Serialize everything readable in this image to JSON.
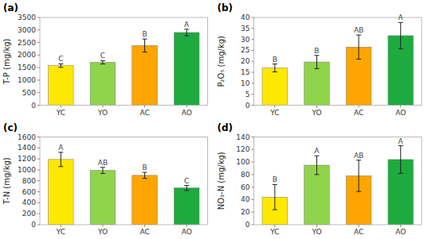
{
  "chart_data": [
    {
      "type": "bar",
      "title": "(a)",
      "ylabel": "T-P (mg/kg)",
      "categories": [
        "YC",
        "YO",
        "AC",
        "AO"
      ],
      "values": [
        1580,
        1710,
        2380,
        2900
      ],
      "errors": [
        70,
        65,
        260,
        130
      ],
      "annotations": [
        "C",
        "C",
        "B",
        "A"
      ],
      "colors": [
        "#FFE800",
        "#8FD44A",
        "#FFA500",
        "#1DAB3E"
      ],
      "ylim": [
        0,
        3500
      ],
      "yticks": [
        0,
        500,
        1000,
        1500,
        2000,
        2500,
        3000,
        3500
      ],
      "grid": false
    },
    {
      "type": "bar",
      "title": "(b)",
      "ylabel": "P₂O₅ (mg/kg)",
      "categories": [
        "YC",
        "YO",
        "AC",
        "AO"
      ],
      "values": [
        17.0,
        19.7,
        26.5,
        31.7
      ],
      "errors": [
        1.8,
        3.0,
        5.5,
        6.0
      ],
      "annotations": [
        "B",
        "B",
        "AB",
        "A"
      ],
      "colors": [
        "#FFE800",
        "#8FD44A",
        "#FFA500",
        "#1DAB3E"
      ],
      "ylim": [
        0,
        40
      ],
      "yticks": [
        0,
        5,
        10,
        15,
        20,
        25,
        30,
        35,
        40
      ],
      "grid": false
    },
    {
      "type": "bar",
      "title": "(c)",
      "ylabel": "T-N (mg/kg)",
      "categories": [
        "YC",
        "YO",
        "AC",
        "AO"
      ],
      "values": [
        1190,
        990,
        900,
        670
      ],
      "errors": [
        130,
        55,
        55,
        45
      ],
      "annotations": [
        "A",
        "AB",
        "B",
        "C"
      ],
      "colors": [
        "#FFE800",
        "#8FD44A",
        "#FFA500",
        "#1DAB3E"
      ],
      "ylim": [
        0,
        1600
      ],
      "yticks": [
        0,
        200,
        400,
        600,
        800,
        1000,
        1200,
        1400,
        1600
      ],
      "grid": false
    },
    {
      "type": "bar",
      "title": "(d)",
      "ylabel": "NO₃-N (mg/kg)",
      "categories": [
        "YC",
        "YO",
        "AC",
        "AO"
      ],
      "values": [
        44,
        95,
        78,
        104
      ],
      "errors": [
        20,
        15,
        25,
        22
      ],
      "annotations": [
        "B",
        "A",
        "AB",
        "A"
      ],
      "colors": [
        "#FFE800",
        "#8FD44A",
        "#FFA500",
        "#1DAB3E"
      ],
      "ylim": [
        0,
        140
      ],
      "yticks": [
        0,
        20,
        40,
        60,
        80,
        100,
        120,
        140
      ],
      "grid": false
    }
  ]
}
